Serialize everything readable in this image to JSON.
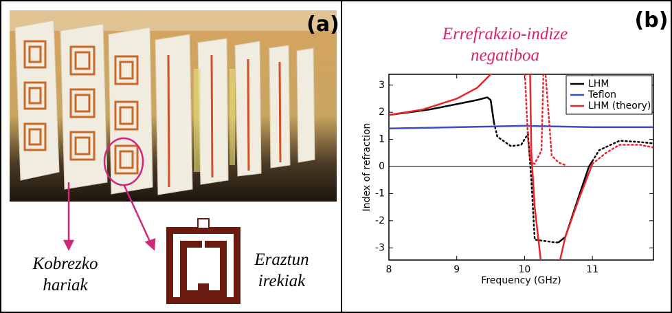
{
  "panel_a": {
    "label": "(a)",
    "wire_label": "Kobrezko hariak",
    "ring_label": "Eraztun irekiak"
  },
  "chart_data": {
    "type": "line",
    "panel_label": "(b)",
    "title": "Errefrakzio-indize negatiboa",
    "x_label": "Frequency (GHz)",
    "y_label": "Index of refraction",
    "xlim": [
      8,
      11.9
    ],
    "ylim": [
      -3.45,
      3.4
    ],
    "xticks": [
      8,
      9,
      10,
      11
    ],
    "yticks": [
      -3,
      -2,
      -1,
      0,
      1,
      2,
      3
    ],
    "zero_line": true,
    "legend": "top-right",
    "series": [
      {
        "name": "LHM",
        "color": "#000000",
        "x": [
          8,
          8.3,
          8.6,
          9,
          9.3,
          9.45,
          9.5,
          9.55,
          9.6,
          9.8,
          9.95,
          10.05,
          10.1,
          10.15,
          10.3,
          10.45,
          10.5,
          10.6,
          10.8,
          10.95,
          11,
          11.1,
          11.4,
          11.7,
          11.9
        ],
        "values": [
          1.9,
          2.0,
          2.1,
          2.3,
          2.45,
          2.55,
          2.45,
          1.6,
          null,
          null,
          null,
          null,
          null,
          null,
          null,
          null,
          -2.8,
          -2.6,
          -1.1,
          0.0,
          0.2,
          null,
          null,
          null,
          null
        ],
        "dotted_values": [
          null,
          null,
          null,
          null,
          null,
          null,
          null,
          1.6,
          1.1,
          0.75,
          0.8,
          1.2,
          -0.5,
          -2.7,
          -2.75,
          -2.8,
          -2.8,
          null,
          null,
          null,
          0.2,
          0.6,
          0.95,
          0.9,
          0.85
        ]
      },
      {
        "name": "Teflon",
        "color": "#3a4bc4",
        "x": [
          8,
          9,
          10,
          11,
          11.9
        ],
        "values": [
          1.4,
          1.45,
          1.5,
          1.45,
          1.45
        ]
      },
      {
        "name": "LHM (theory)",
        "color": "#e8242c",
        "x": [
          8,
          8.5,
          9,
          9.3,
          9.5,
          9.6,
          10.0,
          10.05,
          10.08,
          10.1,
          10.15,
          10.25,
          10.28,
          10.3,
          10.4,
          10.5,
          10.6,
          10.8,
          11,
          11.2,
          11.4,
          11.7,
          11.9
        ],
        "values": [
          1.9,
          2.1,
          2.5,
          2.9,
          3.4,
          3.7,
          null,
          null,
          3.7,
          0.5,
          -1.5,
          -3.7,
          null,
          null,
          null,
          -3.7,
          -2.6,
          -1.2,
          0.1,
          null,
          null,
          null,
          null
        ],
        "dotted_values": [
          null,
          null,
          null,
          null,
          null,
          null,
          3.7,
          1.0,
          0.3,
          0.15,
          0.1,
          0.6,
          3.7,
          3.7,
          0.4,
          0.15,
          0.05,
          null,
          0.1,
          0.5,
          0.8,
          0.8,
          0.7
        ]
      }
    ]
  }
}
